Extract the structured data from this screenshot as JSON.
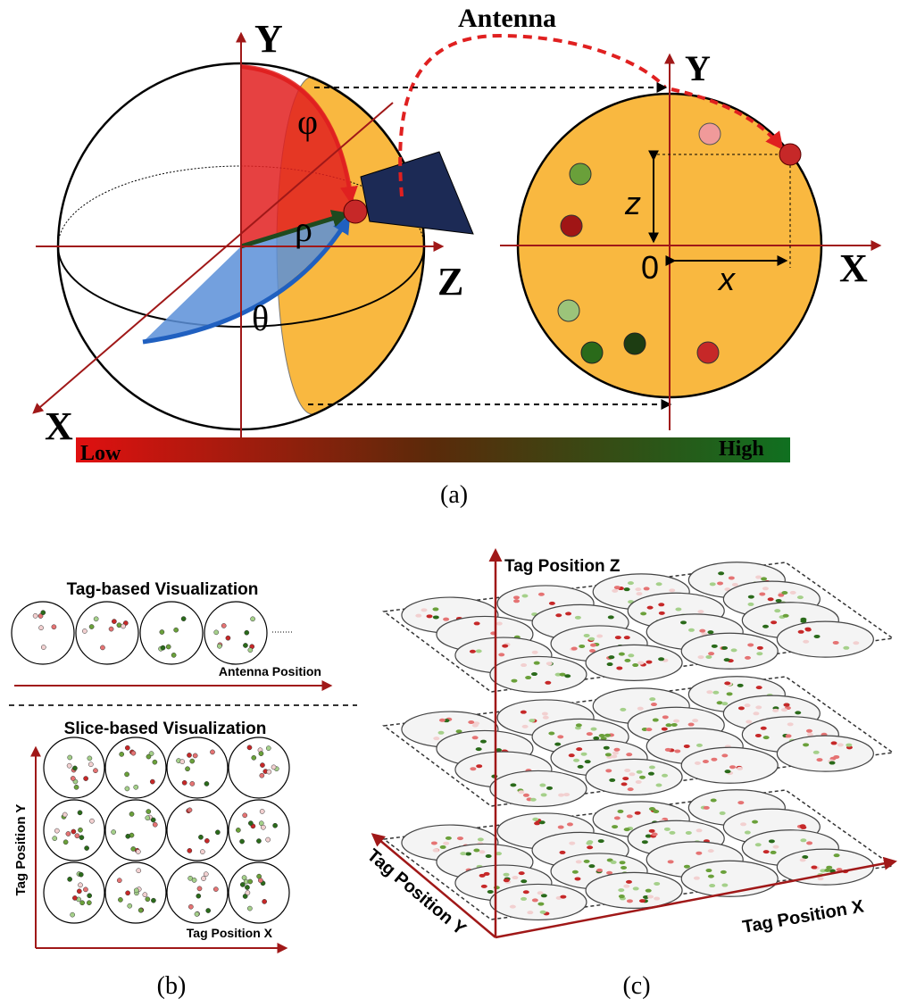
{
  "panel_a": {
    "sphere": {
      "axis_y": "Y",
      "axis_z": "Z",
      "axis_x": "X",
      "phi": "φ",
      "rho": "ρ",
      "theta": "θ"
    },
    "antenna": "Antenna",
    "projection": {
      "axis_y": "Y",
      "axis_x": "X",
      "origin": "0",
      "z": "z",
      "x": "x"
    },
    "colorbar": {
      "low": "Low",
      "high": "High"
    },
    "caption": "(a)"
  },
  "panel_b": {
    "tag_based": {
      "title": "Tag-based Visualization",
      "axis": "Antenna Position"
    },
    "slice_based": {
      "title": "Slice-based Visualization",
      "axis_y": "Tag Position Y",
      "axis_x": "Tag Position X"
    },
    "caption": "(b)"
  },
  "panel_c": {
    "axis_z": "Tag Position Z",
    "axis_y": "Tag Position Y",
    "axis_x": "Tag Position X",
    "caption": "(c)"
  }
}
